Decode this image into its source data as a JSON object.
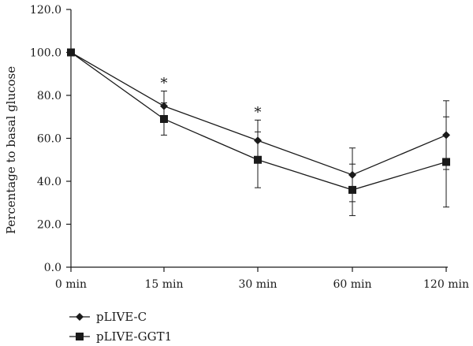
{
  "chart_data": {
    "type": "line",
    "title": "",
    "xlabel": "",
    "ylabel": "Percentage to basal glucose",
    "categories": [
      "0 min",
      "15 min",
      "30 min",
      "60 min",
      "120 min"
    ],
    "ylim": [
      0,
      120
    ],
    "yticks": [
      0,
      20,
      40,
      60,
      80,
      100,
      120
    ],
    "ytick_labels": [
      "0.0",
      "20.0",
      "40.0",
      "60.0",
      "80.0",
      "100.0",
      "120.0"
    ],
    "grid": false,
    "legend_position": "bottom-left",
    "series": [
      {
        "name": "pLIVE-C",
        "marker": "diamond",
        "values": [
          100,
          75,
          59,
          43,
          61.5
        ],
        "error": [
          0,
          7,
          9.5,
          12.5,
          16
        ]
      },
      {
        "name": "pLIVE-GGT1",
        "marker": "square",
        "values": [
          100,
          69,
          50,
          36,
          49
        ],
        "error": [
          0,
          7.5,
          13,
          12,
          21
        ]
      }
    ],
    "annotations": [
      {
        "text": "*",
        "category": "15 min"
      },
      {
        "text": "*",
        "category": "30 min"
      }
    ],
    "colors": {
      "line": "#1a1a1a",
      "background": "#ffffff"
    }
  }
}
